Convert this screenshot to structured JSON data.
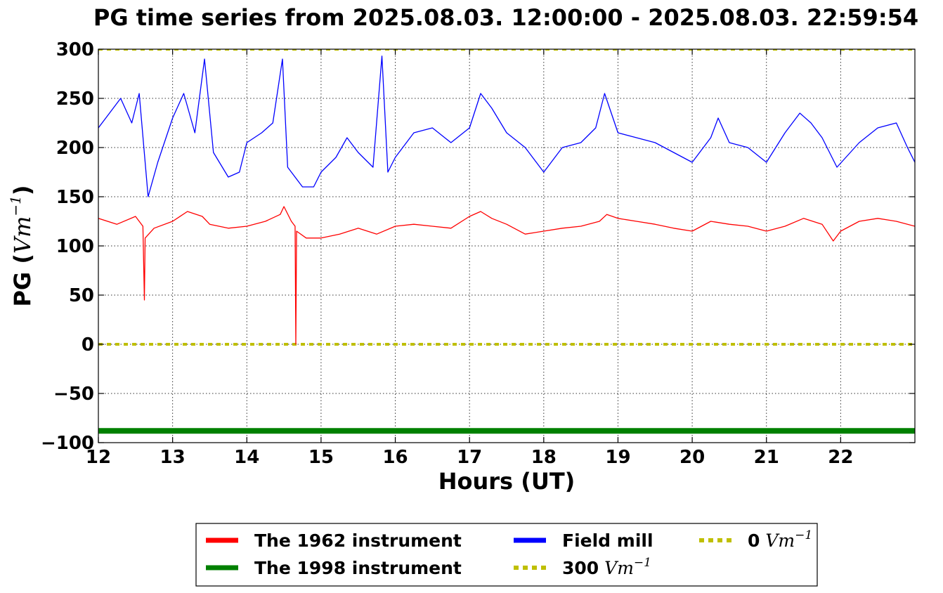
{
  "chart_data": {
    "type": "line",
    "title": "PG time series from 2025.08.03. 12:00:00 - 2025.08.03. 22:59:54",
    "xlabel": "Hours (UT)",
    "ylabel_prefix": "PG (",
    "ylabel_unit": "Vm",
    "ylabel_exp": "−1",
    "ylabel_suffix": ")",
    "xlim": [
      12,
      23
    ],
    "ylim": [
      -100,
      300
    ],
    "x_ticks": [
      12,
      13,
      14,
      15,
      16,
      17,
      18,
      19,
      20,
      21,
      22
    ],
    "x_tick_labels": [
      "12",
      "13",
      "14",
      "15",
      "16",
      "17",
      "18",
      "19",
      "20",
      "21",
      "22"
    ],
    "y_ticks": [
      300,
      250,
      200,
      150,
      100,
      50,
      0,
      -50,
      -100
    ],
    "y_tick_labels": [
      "300",
      "250",
      "200",
      "150",
      "100",
      "50",
      "0",
      "−50",
      "−100"
    ],
    "grid": true,
    "legend_position": "below",
    "series": [
      {
        "name": "The 1962 instrument",
        "color": "#ff0000",
        "x": [
          12.0,
          12.25,
          12.5,
          12.6,
          12.62,
          12.63,
          12.75,
          13.0,
          13.2,
          13.4,
          13.5,
          13.75,
          14.0,
          14.25,
          14.45,
          14.5,
          14.6,
          14.65,
          14.66,
          14.67,
          14.8,
          15.0,
          15.25,
          15.5,
          15.75,
          16.0,
          16.25,
          16.5,
          16.75,
          17.0,
          17.15,
          17.3,
          17.5,
          17.75,
          18.0,
          18.25,
          18.5,
          18.75,
          18.85,
          19.0,
          19.25,
          19.5,
          19.75,
          20.0,
          20.25,
          20.5,
          20.75,
          21.0,
          21.25,
          21.5,
          21.75,
          21.9,
          22.0,
          22.25,
          22.5,
          22.75,
          23.0
        ],
        "y": [
          128,
          122,
          130,
          120,
          45,
          108,
          118,
          125,
          135,
          130,
          122,
          118,
          120,
          125,
          132,
          140,
          125,
          120,
          0,
          115,
          108,
          108,
          112,
          118,
          112,
          120,
          122,
          120,
          118,
          130,
          135,
          128,
          122,
          112,
          115,
          118,
          120,
          125,
          132,
          128,
          125,
          122,
          118,
          115,
          125,
          122,
          120,
          115,
          120,
          128,
          122,
          105,
          115,
          125,
          128,
          125,
          120
        ]
      },
      {
        "name": "The 1998 instrument",
        "color": "#008000",
        "x": [
          12,
          23
        ],
        "y": [
          -88,
          -88
        ]
      },
      {
        "name": "Field mill",
        "color": "#0000ff",
        "x": [
          12.0,
          12.15,
          12.3,
          12.45,
          12.55,
          12.67,
          12.8,
          13.0,
          13.15,
          13.3,
          13.43,
          13.55,
          13.75,
          13.9,
          14.0,
          14.2,
          14.35,
          14.48,
          14.55,
          14.75,
          14.9,
          15.0,
          15.2,
          15.35,
          15.5,
          15.7,
          15.82,
          15.9,
          16.0,
          16.25,
          16.5,
          16.75,
          17.0,
          17.15,
          17.3,
          17.5,
          17.75,
          18.0,
          18.25,
          18.5,
          18.7,
          18.82,
          19.0,
          19.25,
          19.5,
          19.75,
          20.0,
          20.25,
          20.35,
          20.5,
          20.75,
          21.0,
          21.25,
          21.45,
          21.6,
          21.75,
          21.95,
          22.25,
          22.5,
          22.75,
          22.9,
          23.0
        ],
        "y": [
          220,
          235,
          250,
          225,
          255,
          150,
          185,
          230,
          255,
          215,
          290,
          195,
          170,
          175,
          205,
          215,
          225,
          290,
          180,
          160,
          160,
          175,
          190,
          210,
          195,
          180,
          293,
          175,
          190,
          215,
          220,
          205,
          220,
          255,
          240,
          215,
          200,
          175,
          200,
          205,
          220,
          255,
          215,
          210,
          205,
          195,
          185,
          210,
          230,
          205,
          200,
          185,
          215,
          235,
          225,
          210,
          180,
          205,
          220,
          225,
          200,
          185
        ]
      },
      {
        "name": "300",
        "unit_text": "Vm",
        "unit_exp": "−1",
        "color": "#bfbf00",
        "style": "dotted",
        "x": [
          12,
          23
        ],
        "y": [
          300,
          300
        ]
      },
      {
        "name": "0",
        "unit_text": "Vm",
        "unit_exp": "−1",
        "color": "#bfbf00",
        "style": "dotted",
        "x": [
          12,
          23
        ],
        "y": [
          0,
          0
        ]
      }
    ],
    "legend_order": [
      0,
      1,
      2,
      3,
      4
    ]
  }
}
